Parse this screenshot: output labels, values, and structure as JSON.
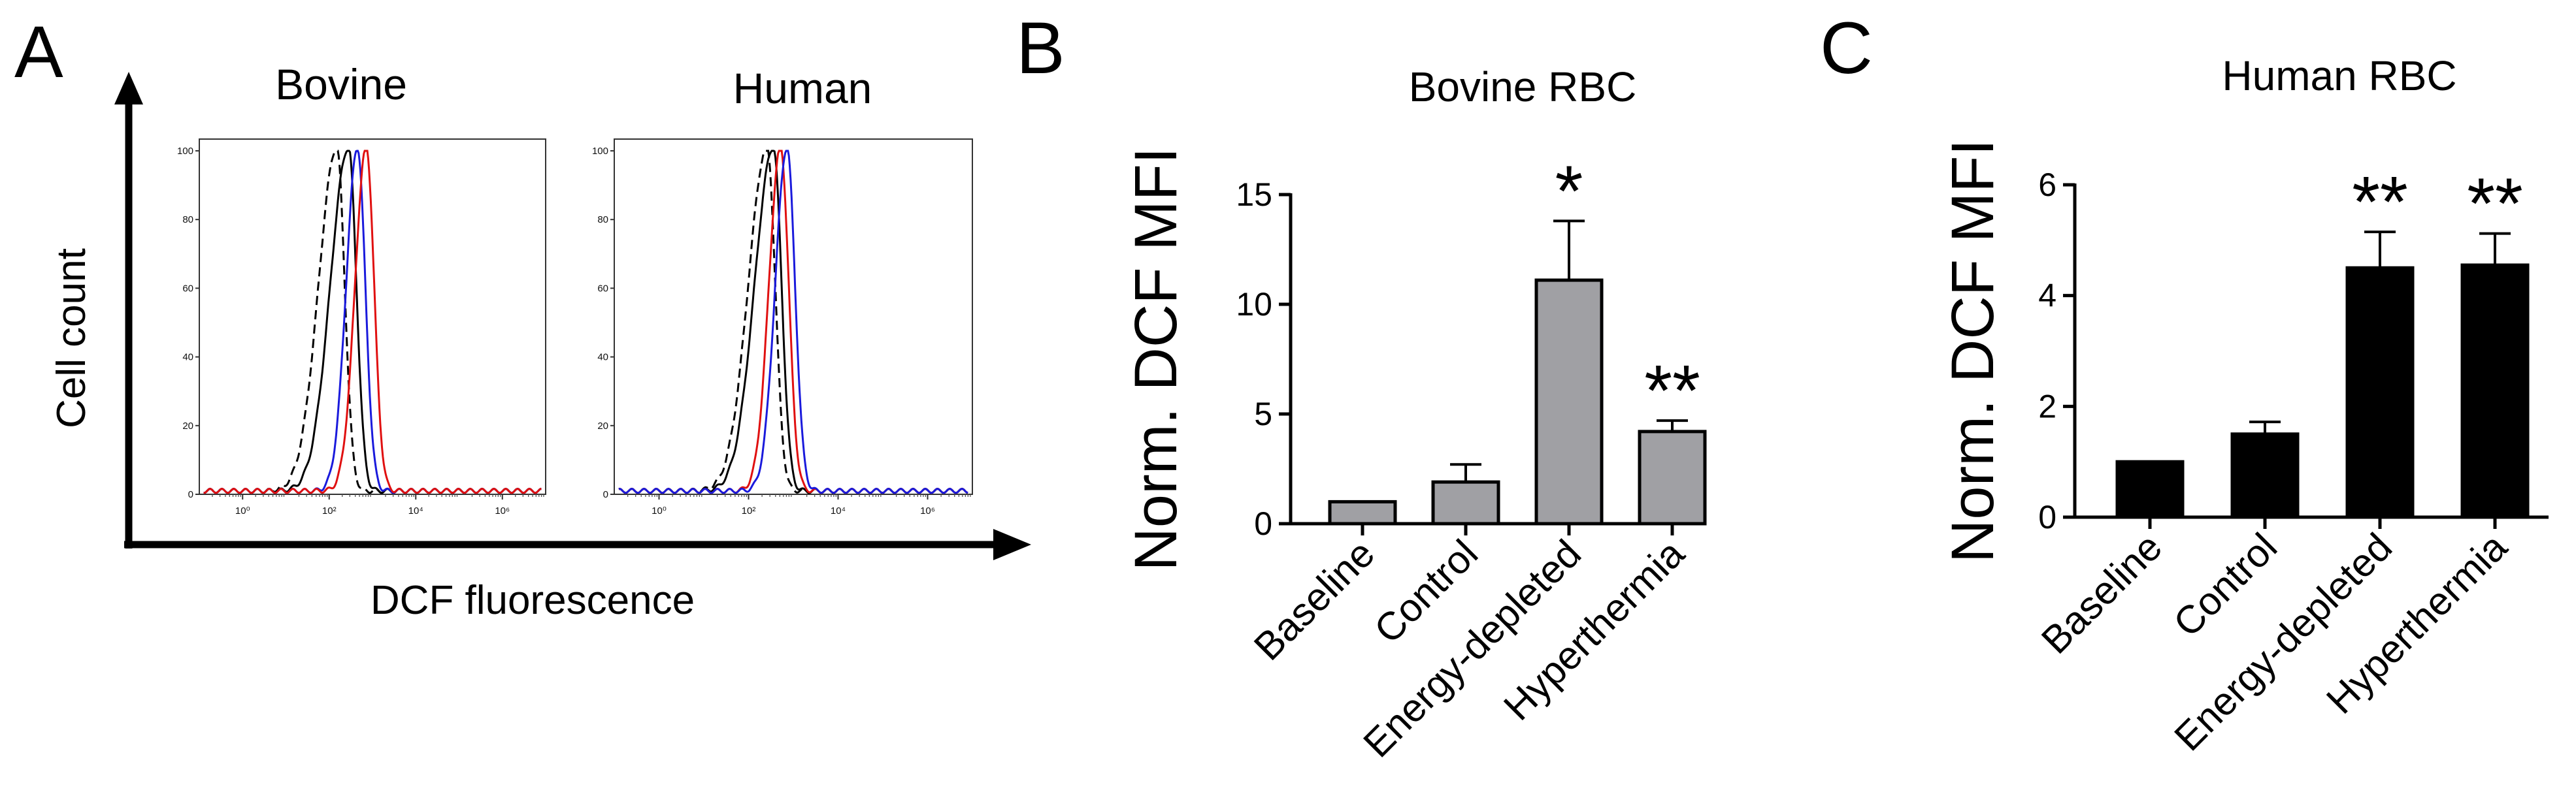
{
  "panel_labels": {
    "a": "A",
    "b": "B",
    "c": "C"
  },
  "panel_a": {
    "y_axis_label": "Cell count",
    "x_axis_label": "DCF fluorescence",
    "titles": [
      "Bovine",
      "Human"
    ],
    "y_ticks": [
      "100",
      "80",
      "60",
      "40",
      "20",
      "0"
    ],
    "x_ticks": [
      "10⁰",
      "10²",
      "10⁴",
      "10⁶"
    ]
  },
  "chart_data": [
    {
      "type": "line",
      "titles": [
        "Bovine",
        "Human"
      ],
      "xlabel": "DCF fluorescence",
      "ylabel": "Cell count",
      "x_scale": "log",
      "xlim": [
        0.1,
        10000000
      ],
      "ylim": [
        0,
        100
      ],
      "y_ticks": [
        0,
        20,
        40,
        60,
        80,
        100
      ],
      "x_ticks": [
        1,
        100,
        10000,
        1000000
      ],
      "x_tick_labels": [
        "10⁰",
        "10²",
        "10⁴",
        "10⁶"
      ],
      "colors": {
        "black_dashed": "#000000",
        "black": "#000000",
        "blue": "#1a1adc",
        "red": "#e01010"
      },
      "panels": [
        {
          "title": "Bovine",
          "series": [
            {
              "color": "black_dashed",
              "peak_x": 150,
              "peak_y": 100
            },
            {
              "color": "black",
              "peak_x": 280,
              "peak_y": 100
            },
            {
              "color": "blue",
              "peak_x": 450,
              "peak_y": 100
            },
            {
              "color": "red",
              "peak_x": 720,
              "peak_y": 100
            }
          ]
        },
        {
          "title": "Human",
          "series": [
            {
              "color": "black_dashed",
              "peak_x": 260,
              "peak_y": 100
            },
            {
              "color": "black",
              "peak_x": 360,
              "peak_y": 100
            },
            {
              "color": "red",
              "peak_x": 520,
              "peak_y": 100
            },
            {
              "color": "blue",
              "peak_x": 720,
              "peak_y": 100
            }
          ]
        }
      ]
    },
    {
      "type": "bar",
      "title": "Bovine RBC",
      "xlabel": "",
      "ylabel": "Norm. DCF MFI",
      "categories": [
        "Baseline",
        "Control",
        "Energy-depleted",
        "Hyperthermia"
      ],
      "values": [
        1,
        1.9,
        11.1,
        4.2
      ],
      "errors": [
        0,
        0.8,
        2.7,
        0.5
      ],
      "significance": [
        "",
        "",
        "*",
        "**"
      ],
      "ylim": [
        0,
        15
      ],
      "y_ticks": [
        0,
        5,
        10,
        15
      ],
      "bar_color": "#a0a0a4"
    },
    {
      "type": "bar",
      "title": "Human RBC",
      "xlabel": "",
      "ylabel": "Norm. DCF MFI",
      "categories": [
        "Baseline",
        "Control",
        "Energy-depleted",
        "Hyperthermia"
      ],
      "values": [
        1,
        1.5,
        4.5,
        4.55
      ],
      "errors": [
        0,
        0.22,
        0.65,
        0.57
      ],
      "significance": [
        "",
        "",
        "**",
        "**"
      ],
      "ylim": [
        0,
        6
      ],
      "y_ticks": [
        0,
        2,
        4,
        6
      ],
      "bar_color": "#000000"
    }
  ]
}
